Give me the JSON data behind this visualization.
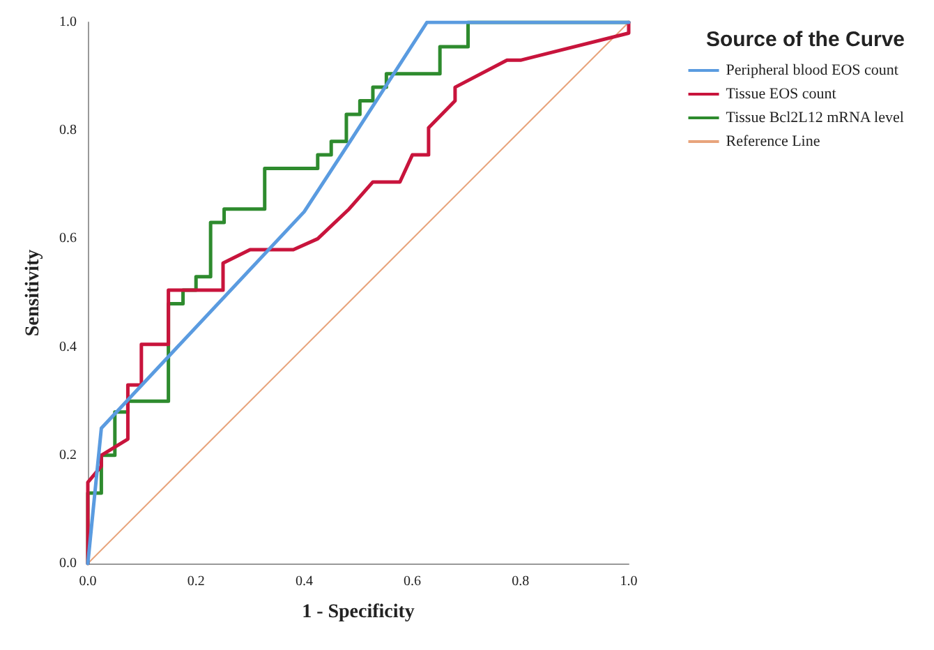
{
  "chart_data": {
    "type": "line",
    "xlabel": "1 - Specificity",
    "ylabel": "Sensitivity",
    "legend_title": "Source of the Curve",
    "xlim": [
      0,
      1
    ],
    "ylim": [
      0,
      1
    ],
    "xticks": [
      {
        "value": 0,
        "label": "0.0"
      },
      {
        "value": 0.2,
        "label": "0.2"
      },
      {
        "value": 0.4,
        "label": "0.4"
      },
      {
        "value": 0.6,
        "label": "0.6"
      },
      {
        "value": 0.8,
        "label": "0.8"
      },
      {
        "value": 1,
        "label": "1.0"
      }
    ],
    "yticks": [
      {
        "value": 0,
        "label": "0.0"
      },
      {
        "value": 0.2,
        "label": "0.2"
      },
      {
        "value": 0.4,
        "label": "0.4"
      },
      {
        "value": 0.6,
        "label": "0.6"
      },
      {
        "value": 0.8,
        "label": "0.8"
      },
      {
        "value": 1,
        "label": "1.0"
      }
    ],
    "grid": false,
    "legend": "right",
    "marker": "none",
    "line_style": "solid",
    "series": [
      {
        "name": "Peripheral blood EOS count",
        "color": "#5a9be0",
        "x": [
          0,
          0.025,
          0.4,
          0.485,
          0.627,
          1
        ],
        "values": [
          0,
          0.25,
          0.65,
          0.78,
          1,
          1
        ]
      },
      {
        "name": "Tissue EOS count",
        "color": "#c8143c",
        "x": [
          0,
          0,
          0.025,
          0.025,
          0.074,
          0.074,
          0.099,
          0.099,
          0.149,
          0.149,
          0.25,
          0.25,
          0.3,
          0.38,
          0.425,
          0.483,
          0.527,
          0.577,
          0.6,
          0.63,
          0.63,
          0.679,
          0.679,
          0.775,
          0.8,
          1,
          1
        ],
        "values": [
          0,
          0.15,
          0.18,
          0.2,
          0.23,
          0.33,
          0.33,
          0.405,
          0.405,
          0.505,
          0.505,
          0.555,
          0.58,
          0.58,
          0.6,
          0.655,
          0.705,
          0.705,
          0.755,
          0.755,
          0.805,
          0.855,
          0.88,
          0.93,
          0.93,
          0.98,
          1
        ]
      },
      {
        "name": "Tissue Bcl2L12 mRNA level",
        "color": "#2e8b2e",
        "x": [
          0,
          0,
          0.025,
          0.025,
          0.05,
          0.05,
          0.074,
          0.074,
          0.149,
          0.149,
          0.176,
          0.176,
          0.2,
          0.2,
          0.227,
          0.227,
          0.252,
          0.252,
          0.327,
          0.327,
          0.425,
          0.425,
          0.45,
          0.45,
          0.478,
          0.478,
          0.503,
          0.503,
          0.527,
          0.527,
          0.552,
          0.552,
          0.651,
          0.651,
          0.703,
          0.703,
          1
        ],
        "values": [
          0,
          0.13,
          0.13,
          0.2,
          0.2,
          0.28,
          0.28,
          0.3,
          0.3,
          0.48,
          0.48,
          0.505,
          0.505,
          0.53,
          0.53,
          0.63,
          0.63,
          0.655,
          0.655,
          0.73,
          0.73,
          0.755,
          0.755,
          0.78,
          0.78,
          0.83,
          0.83,
          0.855,
          0.855,
          0.88,
          0.88,
          0.905,
          0.905,
          0.955,
          0.955,
          1,
          1
        ]
      },
      {
        "name": "Reference Line",
        "color": "#e8a47c",
        "x": [
          0,
          1
        ],
        "values": [
          0,
          1
        ]
      }
    ]
  }
}
